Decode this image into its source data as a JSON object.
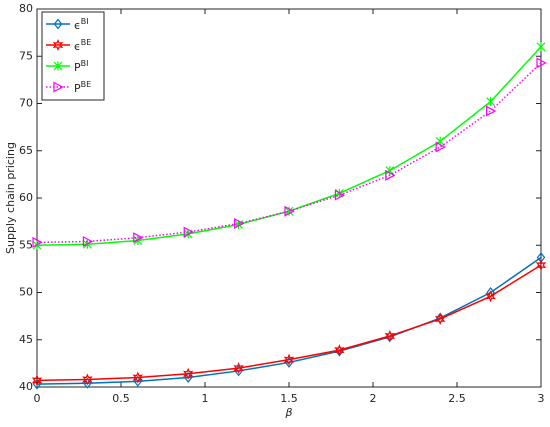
{
  "chart_data": {
    "type": "line",
    "x_label": "β",
    "y_label": "Supply chain pricing",
    "x": [
      0,
      0.3,
      0.6,
      0.9,
      1.2,
      1.5,
      1.8,
      2.1,
      2.4,
      2.7,
      3
    ],
    "series": [
      {
        "name": "ϵBI",
        "color": "#0072bd",
        "marker": "diamond",
        "dash": "solid",
        "values": [
          40.3,
          40.4,
          40.6,
          41.0,
          41.7,
          42.6,
          43.8,
          45.3,
          47.3,
          50.0,
          53.7
        ]
      },
      {
        "name": "ϵBE",
        "color": "#ff0000",
        "marker": "hexagram",
        "dash": "solid",
        "values": [
          40.7,
          40.8,
          41.0,
          41.4,
          42.0,
          42.9,
          43.9,
          45.4,
          47.2,
          49.6,
          52.9
        ]
      },
      {
        "name": "PBI",
        "color": "#00ff00",
        "marker": "asterisk",
        "dash": "solid",
        "values": [
          55.0,
          55.1,
          55.5,
          56.2,
          57.2,
          58.6,
          60.5,
          62.9,
          66.0,
          70.2,
          76.0
        ]
      },
      {
        "name": "PBE",
        "color": "#ff00ff",
        "marker": "triangle-right",
        "dash": "dotted",
        "values": [
          55.3,
          55.4,
          55.8,
          56.4,
          57.3,
          58.6,
          60.3,
          62.4,
          65.4,
          69.2,
          74.3
        ]
      }
    ],
    "xlim": [
      0,
      3
    ],
    "xticks": [
      0,
      0.5,
      1,
      1.5,
      2,
      2.5,
      3
    ],
    "ylim": [
      40,
      80
    ],
    "yticks": [
      40,
      45,
      50,
      55,
      60,
      65,
      70,
      75,
      80
    ],
    "grid": false,
    "legend": "upper left"
  }
}
